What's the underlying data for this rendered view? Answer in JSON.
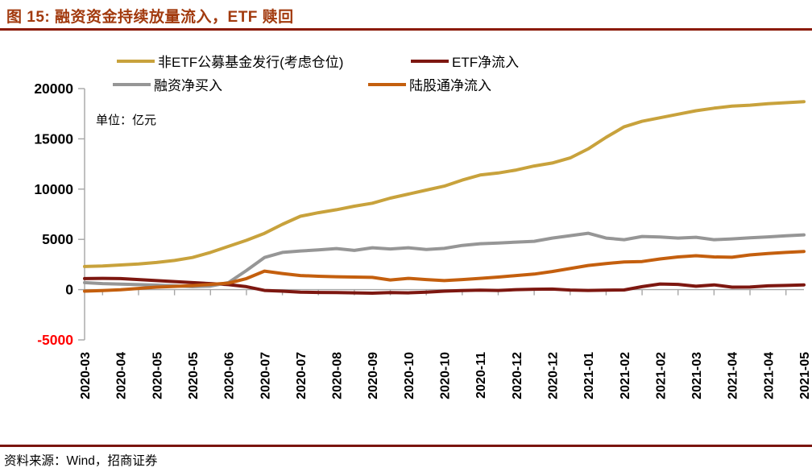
{
  "header": {
    "title": "图 15: 融资资金持续放量流入，ETF 赎回"
  },
  "footer": {
    "source": "资料来源：Wind，招商证券"
  },
  "unit_label": "单位：亿元",
  "colors": {
    "title_text": "#A23A0E",
    "title_rule": "#8B1A06",
    "source_rule": "#7A150E",
    "axis": "#A6A6A6",
    "tick_label": "#000000",
    "negative_tick_label": "#FF0000"
  },
  "chart_data": {
    "type": "line",
    "title": "融资资金持续放量流入，ETF 赎回",
    "unit": "亿元",
    "ylim": [
      -5000,
      20000
    ],
    "yticks": [
      -5000,
      0,
      5000,
      10000,
      15000,
      20000
    ],
    "grid": false,
    "legend_position": "top",
    "x_labels": [
      "2020-03",
      "2020-04",
      "2020-05",
      "2020-05",
      "2020-06",
      "2020-07",
      "2020-07",
      "2020-08",
      "2020-09",
      "2020-10",
      "2020-10",
      "2020-11",
      "2020-12",
      "2020-12",
      "2021-01",
      "2021-02",
      "2021-02",
      "2021-03",
      "2021-04",
      "2021-04",
      "2021-05"
    ],
    "series": [
      {
        "name": "非ETF公募基金发行(考虑仓位)",
        "color": "#C8A23C",
        "values": [
          2300,
          2350,
          2450,
          2550,
          2700,
          2900,
          3200,
          3700,
          4300,
          4900,
          5600,
          6500,
          7300,
          7650,
          7950,
          8300,
          8600,
          9100,
          9500,
          9900,
          10300,
          10900,
          11400,
          11600,
          11900,
          12300,
          12600,
          13100,
          14000,
          15150,
          16200,
          16750,
          17100,
          17450,
          17800,
          18050,
          18250,
          18350,
          18500,
          18600,
          18700
        ]
      },
      {
        "name": "ETF净流入",
        "color": "#7D1710",
        "values": [
          1100,
          1120,
          1100,
          1000,
          900,
          800,
          700,
          600,
          500,
          300,
          -80,
          -150,
          -250,
          -280,
          -300,
          -320,
          -350,
          -300,
          -320,
          -250,
          -150,
          -100,
          -60,
          -80,
          0,
          40,
          60,
          -40,
          -80,
          -60,
          -30,
          300,
          560,
          520,
          340,
          470,
          250,
          260,
          380,
          420,
          470
        ]
      },
      {
        "name": "融资净买入",
        "color": "#969696",
        "values": [
          700,
          600,
          550,
          500,
          450,
          380,
          300,
          350,
          700,
          1900,
          3200,
          3700,
          3850,
          3950,
          4090,
          3900,
          4170,
          4050,
          4170,
          4000,
          4100,
          4400,
          4570,
          4630,
          4730,
          4810,
          5130,
          5370,
          5610,
          5130,
          4970,
          5290,
          5240,
          5130,
          5210,
          4970,
          5050,
          5150,
          5250,
          5350,
          5450
        ]
      },
      {
        "name": "陆股通净流入",
        "color": "#C45F0E",
        "values": [
          -150,
          -100,
          -20,
          120,
          250,
          320,
          400,
          520,
          650,
          1100,
          1840,
          1600,
          1400,
          1330,
          1280,
          1250,
          1220,
          960,
          1120,
          1000,
          900,
          1000,
          1120,
          1250,
          1400,
          1550,
          1800,
          2100,
          2400,
          2600,
          2750,
          2800,
          3050,
          3250,
          3370,
          3250,
          3220,
          3450,
          3600,
          3700,
          3800
        ]
      }
    ]
  }
}
